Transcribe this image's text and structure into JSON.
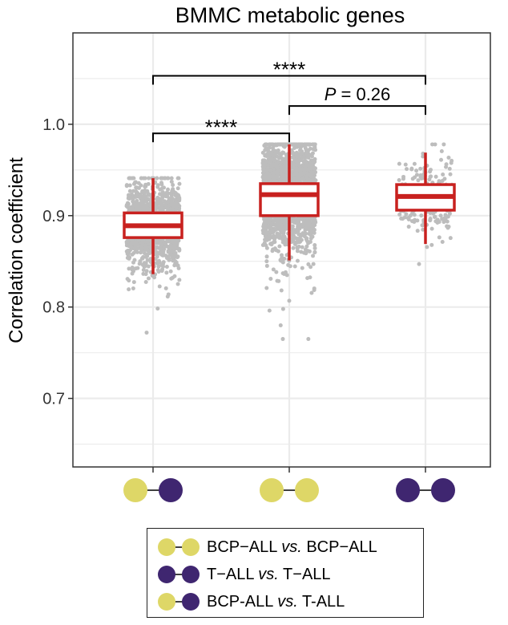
{
  "colors": {
    "bcp": "#DED767",
    "tall": "#3F2670",
    "box": "#C8211F",
    "points": "#BDBDBD",
    "grid": "#EBEBEB",
    "panel_border": "#333333"
  },
  "chart_data": {
    "type": "box",
    "title": "BMMC metabolic genes",
    "ylabel": "Correlation coefficient",
    "ylim": [
      0.625,
      1.1
    ],
    "yticks": [
      0.7,
      0.8,
      0.9,
      1.0
    ],
    "ytick_labels": [
      "0.7",
      "0.8",
      "0.9",
      "1.0"
    ],
    "grid": true,
    "groups": [
      {
        "pair": [
          "bcp",
          "tall"
        ],
        "q1": 0.876,
        "median": 0.889,
        "q3": 0.903,
        "whisker_low": 0.836,
        "whisker_high": 0.941,
        "point_min": 0.772,
        "point_max": 0.941,
        "n_points": 1400
      },
      {
        "pair": [
          "bcp",
          "bcp"
        ],
        "q1": 0.9,
        "median": 0.923,
        "q3": 0.935,
        "whisker_low": 0.851,
        "whisker_high": 0.978,
        "point_min": 0.765,
        "point_max": 0.978,
        "n_points": 2200
      },
      {
        "pair": [
          "tall",
          "tall"
        ],
        "q1": 0.906,
        "median": 0.921,
        "q3": 0.934,
        "whisker_low": 0.869,
        "whisker_high": 0.969,
        "point_min": 0.847,
        "point_max": 0.978,
        "n_points": 230
      }
    ],
    "comparisons": [
      {
        "from": 0,
        "to": 1,
        "label": "****",
        "y": 0.99
      },
      {
        "from": 1,
        "to": 2,
        "label": "P = 0.26",
        "label_italic": "P",
        "label_rest": " = 0.26",
        "y": 1.02
      },
      {
        "from": 0,
        "to": 2,
        "label": "****",
        "y": 1.053
      }
    ]
  },
  "legend": {
    "items": [
      {
        "pair": [
          "bcp",
          "bcp"
        ],
        "text_a": "BCP−ALL ",
        "text_vs": "vs.",
        "text_b": " BCP−ALL"
      },
      {
        "pair": [
          "tall",
          "tall"
        ],
        "text_a": "T−ALL ",
        "text_vs": "vs.",
        "text_b": " T−ALL"
      },
      {
        "pair": [
          "bcp",
          "tall"
        ],
        "text_a": "BCP-ALL ",
        "text_vs": "vs.",
        "text_b": " T-ALL"
      }
    ]
  }
}
